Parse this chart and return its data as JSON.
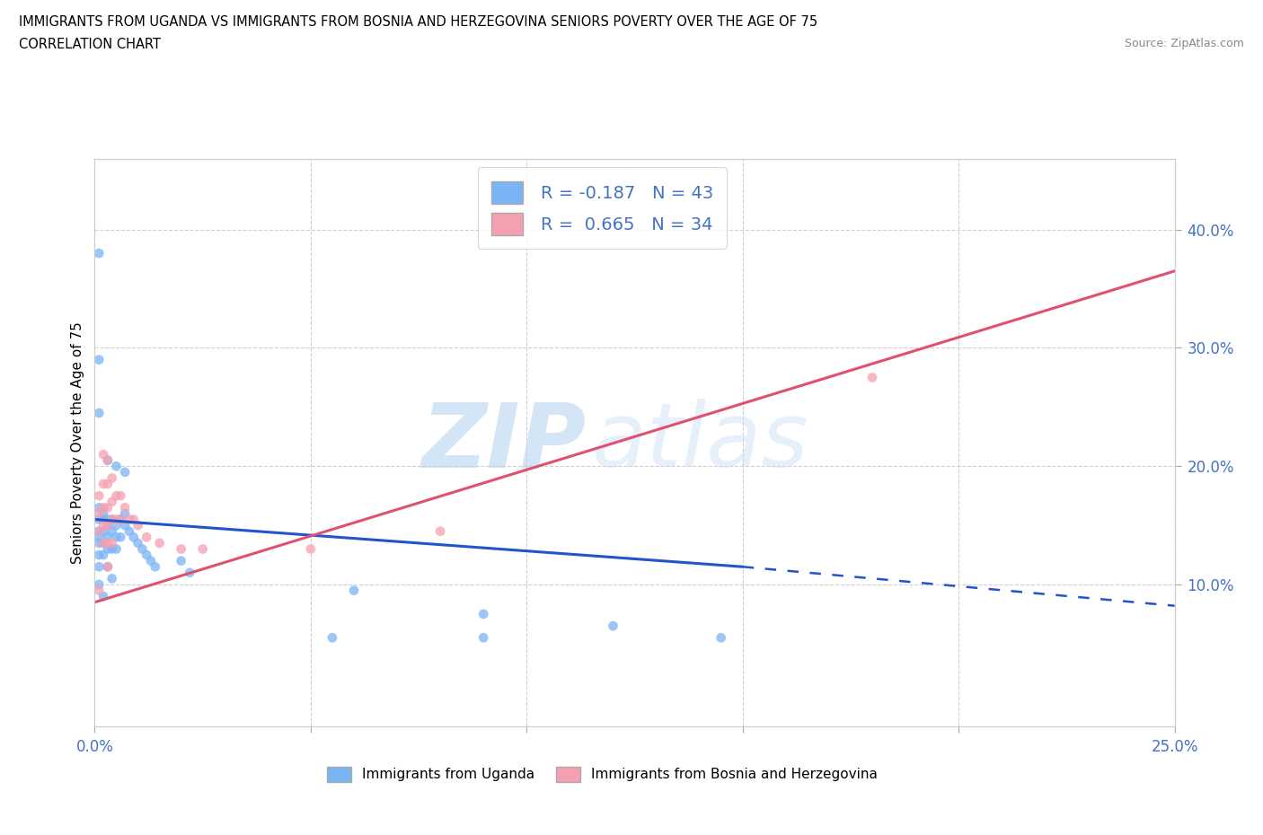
{
  "title_line1": "IMMIGRANTS FROM UGANDA VS IMMIGRANTS FROM BOSNIA AND HERZEGOVINA SENIORS POVERTY OVER THE AGE OF 75",
  "title_line2": "CORRELATION CHART",
  "source": "Source: ZipAtlas.com",
  "ylabel": "Seniors Poverty Over the Age of 75",
  "xlim": [
    0.0,
    0.25
  ],
  "ylim": [
    -0.02,
    0.46
  ],
  "uganda_color": "#7ab4f5",
  "uganda_line_color": "#2255cc",
  "bosnia_color": "#f5a0b0",
  "bosnia_line_color": "#e05070",
  "axis_label_color": "#4472c4",
  "uganda_R": -0.187,
  "uganda_N": 43,
  "bosnia_R": 0.665,
  "bosnia_N": 34,
  "uganda_scatter_x": [
    0.001,
    0.001,
    0.001,
    0.001,
    0.001,
    0.001,
    0.001,
    0.001,
    0.002,
    0.002,
    0.002,
    0.002,
    0.002,
    0.002,
    0.003,
    0.003,
    0.003,
    0.003,
    0.003,
    0.004,
    0.004,
    0.004,
    0.004,
    0.005,
    0.005,
    0.005,
    0.006,
    0.006,
    0.007,
    0.007,
    0.008,
    0.009,
    0.01,
    0.011,
    0.012,
    0.013,
    0.014,
    0.02,
    0.022,
    0.06,
    0.09,
    0.12,
    0.145
  ],
  "uganda_scatter_y": [
    0.165,
    0.155,
    0.145,
    0.14,
    0.135,
    0.125,
    0.115,
    0.1,
    0.16,
    0.155,
    0.145,
    0.135,
    0.125,
    0.09,
    0.155,
    0.15,
    0.14,
    0.13,
    0.115,
    0.155,
    0.145,
    0.13,
    0.105,
    0.15,
    0.14,
    0.13,
    0.155,
    0.14,
    0.16,
    0.15,
    0.145,
    0.14,
    0.135,
    0.13,
    0.125,
    0.12,
    0.115,
    0.12,
    0.11,
    0.095,
    0.075,
    0.065,
    0.055
  ],
  "uganda_outliers_x": [
    0.001,
    0.001,
    0.001,
    0.003,
    0.005,
    0.007,
    0.055,
    0.09
  ],
  "uganda_outliers_y": [
    0.38,
    0.29,
    0.245,
    0.205,
    0.2,
    0.195,
    0.055,
    0.055
  ],
  "bosnia_scatter_x": [
    0.001,
    0.001,
    0.001,
    0.001,
    0.002,
    0.002,
    0.002,
    0.002,
    0.002,
    0.003,
    0.003,
    0.003,
    0.003,
    0.003,
    0.003,
    0.004,
    0.004,
    0.004,
    0.004,
    0.005,
    0.005,
    0.006,
    0.006,
    0.007,
    0.008,
    0.009,
    0.01,
    0.012,
    0.015,
    0.02,
    0.025,
    0.05,
    0.08,
    0.18
  ],
  "bosnia_scatter_y": [
    0.175,
    0.16,
    0.145,
    0.095,
    0.21,
    0.185,
    0.165,
    0.15,
    0.135,
    0.205,
    0.185,
    0.165,
    0.15,
    0.135,
    0.115,
    0.19,
    0.17,
    0.155,
    0.135,
    0.175,
    0.155,
    0.175,
    0.155,
    0.165,
    0.155,
    0.155,
    0.15,
    0.14,
    0.135,
    0.13,
    0.13,
    0.13,
    0.145,
    0.275
  ],
  "grid_color": "#d0d0d0",
  "watermark_zip": "ZIP",
  "watermark_atlas": "atlas",
  "background_color": "#ffffff"
}
